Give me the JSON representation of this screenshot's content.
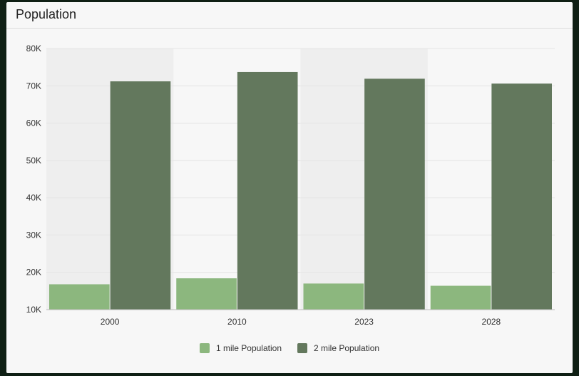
{
  "card": {
    "title": "Population"
  },
  "colors": {
    "series1": "#8cb77e",
    "series2": "#63785d",
    "bandShade": "#eeeeee",
    "grid": "#e4e4e4"
  },
  "chart_data": {
    "type": "bar",
    "title": "Population",
    "xlabel": "",
    "ylabel": "",
    "categories": [
      "2000",
      "2010",
      "2023",
      "2028"
    ],
    "series": [
      {
        "name": "1 mile Population",
        "values": [
          16800,
          18400,
          17000,
          16400
        ]
      },
      {
        "name": "2 mile Population",
        "values": [
          71200,
          73700,
          71900,
          70600
        ]
      }
    ],
    "ylim": [
      10000,
      80000
    ],
    "yticks": [
      10000,
      20000,
      30000,
      40000,
      50000,
      60000,
      70000,
      80000
    ],
    "ytick_labels": [
      "10K",
      "20K",
      "30K",
      "40K",
      "50K",
      "60K",
      "70K",
      "80K"
    ],
    "grid": true,
    "legend_position": "bottom"
  }
}
